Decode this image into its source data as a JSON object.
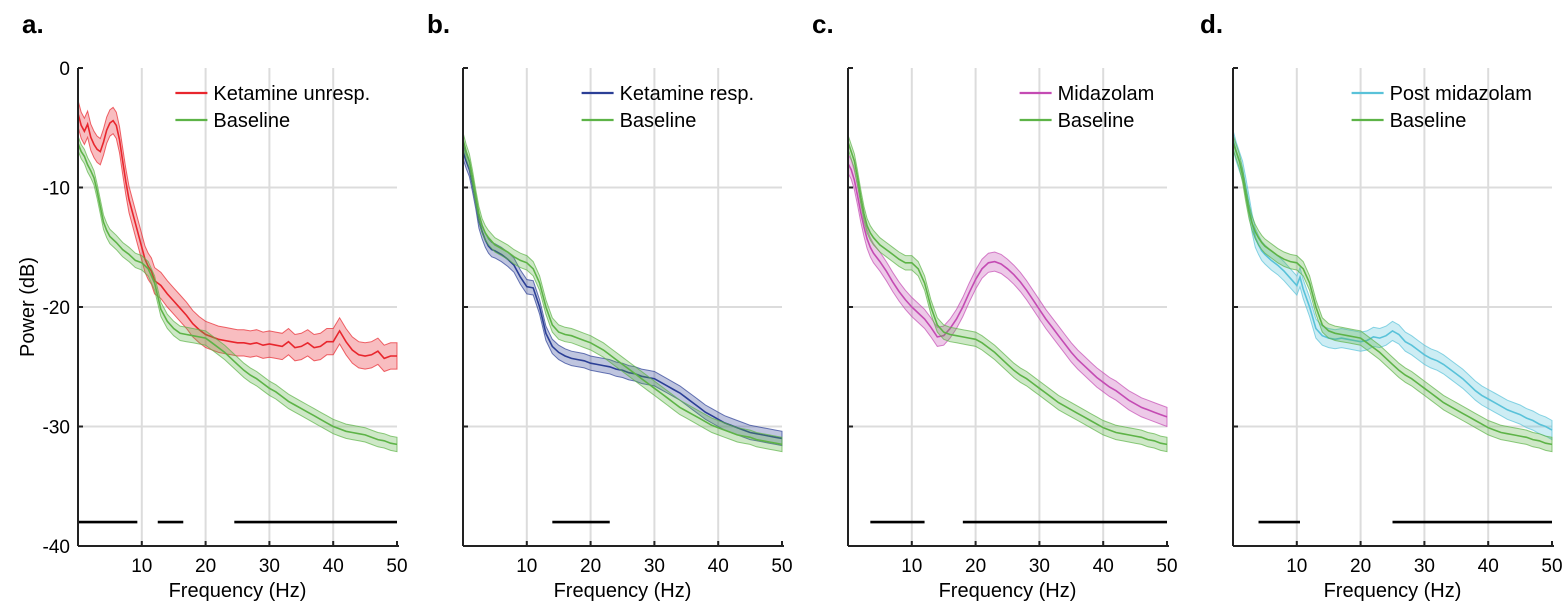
{
  "colors": {
    "baseline": "#5db347",
    "ketamine_unresp": "#e8262d",
    "ketamine_resp": "#2b3f96",
    "midazolam": "#c44bb3",
    "post_midazolam": "#59c2d9",
    "significance": "#000000"
  },
  "chart_data": [
    {
      "type": "line",
      "panel": "a.",
      "xlabel": "Frequency (Hz)",
      "ylabel": "Power (dB)",
      "xlim": [
        0,
        50
      ],
      "ylim": [
        -40,
        0
      ],
      "xticks": [
        10,
        20,
        30,
        40,
        50
      ],
      "yticks": [
        0,
        -10,
        -20,
        -30,
        -40
      ],
      "grid": true,
      "legend": "top-right",
      "series": [
        {
          "name": "Ketamine unresp.",
          "color_key": "ketamine_unresp",
          "band": 1.1,
          "x": [
            0,
            0.5,
            1,
            1.5,
            2,
            2.5,
            3,
            3.5,
            4,
            4.5,
            5,
            5.5,
            6,
            6.5,
            7,
            7.5,
            8,
            8.5,
            9,
            9.5,
            10,
            10.5,
            11,
            11.5,
            12,
            13,
            14,
            15,
            16,
            17,
            18,
            19,
            20,
            21,
            22,
            23,
            24,
            25,
            26,
            27,
            28,
            29,
            30,
            31,
            32,
            33,
            34,
            35,
            36,
            37,
            38,
            39,
            40,
            41,
            42,
            43,
            44,
            45,
            46,
            47,
            48,
            49,
            50
          ],
          "y": [
            -3.8,
            -4.8,
            -5.3,
            -4.7,
            -5.8,
            -6.4,
            -6.8,
            -7.0,
            -6.2,
            -5.2,
            -4.6,
            -4.4,
            -4.8,
            -6.0,
            -7.8,
            -9.5,
            -11.0,
            -12.0,
            -13.0,
            -14.0,
            -15.0,
            -16.0,
            -16.6,
            -17.0,
            -17.8,
            -18.2,
            -18.9,
            -19.5,
            -20.1,
            -20.7,
            -21.4,
            -21.9,
            -22.3,
            -22.5,
            -22.7,
            -22.8,
            -22.9,
            -23.0,
            -23.0,
            -23.1,
            -23.0,
            -23.2,
            -23.1,
            -23.2,
            -23.3,
            -22.9,
            -23.4,
            -23.3,
            -23.0,
            -23.4,
            -23.3,
            -22.9,
            -22.9,
            -22.0,
            -22.9,
            -23.6,
            -24.0,
            -24.1,
            -24.0,
            -23.7,
            -24.3,
            -24.1,
            -24.1
          ]
        },
        {
          "name": "Baseline",
          "color_key": "baseline",
          "band": 0.6,
          "x": [
            0,
            0.5,
            1,
            1.5,
            2,
            2.5,
            3,
            3.5,
            4,
            4.5,
            5,
            6,
            7,
            8,
            9,
            10,
            11,
            12,
            13,
            14,
            15,
            16,
            17,
            18,
            19,
            20,
            21,
            22,
            23,
            24,
            25,
            26,
            27,
            28,
            29,
            30,
            31,
            32,
            33,
            34,
            35,
            36,
            37,
            38,
            39,
            40,
            41,
            42,
            43,
            44,
            45,
            46,
            47,
            48,
            49,
            50
          ],
          "y": [
            -6.3,
            -7.0,
            -7.4,
            -8.1,
            -8.6,
            -9.2,
            -10.3,
            -11.6,
            -12.9,
            -13.6,
            -14.1,
            -14.6,
            -15.2,
            -15.6,
            -16.1,
            -16.3,
            -16.8,
            -18.0,
            -20.2,
            -21.2,
            -21.8,
            -22.2,
            -22.3,
            -22.4,
            -22.5,
            -22.6,
            -23.0,
            -23.4,
            -23.8,
            -24.3,
            -24.8,
            -25.3,
            -25.7,
            -26.0,
            -26.4,
            -26.8,
            -27.1,
            -27.5,
            -27.9,
            -28.2,
            -28.5,
            -28.8,
            -29.1,
            -29.4,
            -29.7,
            -30.0,
            -30.2,
            -30.4,
            -30.5,
            -30.6,
            -30.7,
            -30.9,
            -31.1,
            -31.2,
            -31.4,
            -31.5
          ]
        }
      ],
      "significance_bars": [
        [
          0,
          9.3
        ],
        [
          12.5,
          16.5
        ],
        [
          24.5,
          50
        ]
      ],
      "significance_y": -38.0
    },
    {
      "type": "line",
      "panel": "b.",
      "xlabel": "Frequency (Hz)",
      "ylabel": "",
      "xlim": [
        0,
        50
      ],
      "ylim": [
        -40,
        0
      ],
      "xticks": [
        10,
        20,
        30,
        40,
        50
      ],
      "yticks": [],
      "grid": true,
      "legend": "top-right",
      "series": [
        {
          "name": "Ketamine resp.",
          "color_key": "ketamine_resp",
          "band": 0.6,
          "x": [
            0,
            0.5,
            1,
            1.5,
            2,
            2.5,
            3,
            3.5,
            4,
            4.5,
            5,
            6,
            7,
            8,
            9,
            10,
            11,
            12,
            13,
            14,
            15,
            16,
            17,
            18,
            19,
            20,
            21,
            22,
            23,
            24,
            25,
            26,
            27,
            28,
            29,
            30,
            31,
            32,
            33,
            34,
            35,
            36,
            37,
            38,
            39,
            40,
            41,
            42,
            43,
            44,
            45,
            46,
            47,
            48,
            49,
            50
          ],
          "y": [
            -7.0,
            -7.8,
            -8.5,
            -9.8,
            -11.2,
            -12.8,
            -13.7,
            -14.4,
            -14.9,
            -15.2,
            -15.3,
            -15.6,
            -16.0,
            -16.5,
            -17.5,
            -18.3,
            -18.4,
            -20.0,
            -22.2,
            -23.3,
            -23.8,
            -24.1,
            -24.3,
            -24.4,
            -24.5,
            -24.7,
            -24.8,
            -24.9,
            -25.0,
            -25.2,
            -25.3,
            -25.5,
            -25.6,
            -25.8,
            -25.9,
            -26.0,
            -26.3,
            -26.6,
            -26.9,
            -27.2,
            -27.6,
            -28.0,
            -28.4,
            -28.8,
            -29.1,
            -29.4,
            -29.7,
            -29.9,
            -30.1,
            -30.3,
            -30.5,
            -30.6,
            -30.7,
            -30.8,
            -30.9,
            -31.0
          ]
        },
        {
          "name": "Baseline",
          "color_key": "baseline",
          "band": 0.6,
          "x": [
            0,
            0.5,
            1,
            1.5,
            2,
            2.5,
            3,
            3.5,
            4,
            4.5,
            5,
            6,
            7,
            8,
            9,
            10,
            11,
            12,
            13,
            14,
            15,
            16,
            17,
            18,
            19,
            20,
            21,
            22,
            23,
            24,
            25,
            26,
            27,
            28,
            29,
            30,
            31,
            32,
            33,
            34,
            35,
            36,
            37,
            38,
            39,
            40,
            41,
            42,
            43,
            44,
            45,
            46,
            47,
            48,
            49,
            50
          ],
          "y": [
            -6.0,
            -7.0,
            -7.8,
            -9.2,
            -10.8,
            -12.2,
            -13.2,
            -13.8,
            -14.2,
            -14.5,
            -14.8,
            -15.1,
            -15.4,
            -15.8,
            -16.1,
            -16.3,
            -16.8,
            -18.0,
            -20.0,
            -21.5,
            -22.1,
            -22.3,
            -22.4,
            -22.6,
            -22.8,
            -23.0,
            -23.3,
            -23.6,
            -24.0,
            -24.4,
            -24.8,
            -25.2,
            -25.6,
            -26.0,
            -26.4,
            -26.8,
            -27.2,
            -27.6,
            -28.0,
            -28.4,
            -28.7,
            -29.0,
            -29.3,
            -29.6,
            -29.9,
            -30.1,
            -30.3,
            -30.5,
            -30.7,
            -30.8,
            -30.9,
            -31.1,
            -31.2,
            -31.3,
            -31.4,
            -31.5
          ]
        }
      ],
      "significance_bars": [
        [
          14,
          23
        ]
      ],
      "significance_y": -38.0
    },
    {
      "type": "line",
      "panel": "c.",
      "xlabel": "Frequency (Hz)",
      "ylabel": "",
      "xlim": [
        0,
        50
      ],
      "ylim": [
        -40,
        0
      ],
      "xticks": [
        10,
        20,
        30,
        40,
        50
      ],
      "yticks": [],
      "grid": true,
      "legend": "top-right",
      "series": [
        {
          "name": "Midazolam",
          "color_key": "midazolam",
          "band": 0.8,
          "x": [
            0,
            0.5,
            1,
            1.5,
            2,
            2.5,
            3,
            3.5,
            4,
            5,
            6,
            7,
            8,
            9,
            10,
            11,
            12,
            13,
            14,
            15,
            16,
            17,
            18,
            19,
            20,
            21,
            22,
            23,
            24,
            25,
            26,
            27,
            28,
            29,
            30,
            31,
            32,
            33,
            34,
            35,
            36,
            37,
            38,
            39,
            40,
            41,
            42,
            43,
            44,
            45,
            46,
            47,
            48,
            49,
            50
          ],
          "y": [
            -8.0,
            -8.5,
            -9.4,
            -10.7,
            -12.1,
            -13.3,
            -14.3,
            -15.0,
            -15.5,
            -16.2,
            -17.0,
            -17.9,
            -18.7,
            -19.4,
            -20.0,
            -20.5,
            -21.0,
            -21.7,
            -22.5,
            -22.4,
            -21.8,
            -21.0,
            -20.0,
            -18.8,
            -17.7,
            -16.8,
            -16.3,
            -16.2,
            -16.4,
            -16.8,
            -17.3,
            -17.9,
            -18.6,
            -19.4,
            -20.2,
            -21.0,
            -21.7,
            -22.4,
            -23.1,
            -23.8,
            -24.4,
            -24.9,
            -25.4,
            -25.9,
            -26.3,
            -26.7,
            -27.0,
            -27.4,
            -27.8,
            -28.1,
            -28.4,
            -28.6,
            -28.8,
            -29.0,
            -29.2
          ]
        },
        {
          "name": "Baseline",
          "color_key": "baseline",
          "band": 0.6,
          "x": [
            0,
            0.5,
            1,
            1.5,
            2,
            2.5,
            3,
            3.5,
            4,
            4.5,
            5,
            6,
            7,
            8,
            9,
            10,
            11,
            12,
            13,
            14,
            15,
            16,
            17,
            18,
            19,
            20,
            21,
            22,
            23,
            24,
            25,
            26,
            27,
            28,
            29,
            30,
            31,
            32,
            33,
            34,
            35,
            36,
            37,
            38,
            39,
            40,
            41,
            42,
            43,
            44,
            45,
            46,
            47,
            48,
            49,
            50
          ],
          "y": [
            -6.2,
            -7.0,
            -7.8,
            -9.2,
            -10.8,
            -12.2,
            -13.2,
            -13.8,
            -14.2,
            -14.5,
            -14.8,
            -15.2,
            -15.6,
            -16.0,
            -16.3,
            -16.3,
            -16.8,
            -18.0,
            -20.0,
            -21.5,
            -22.1,
            -22.3,
            -22.4,
            -22.5,
            -22.6,
            -22.7,
            -23.0,
            -23.4,
            -23.8,
            -24.3,
            -24.8,
            -25.3,
            -25.7,
            -26.0,
            -26.4,
            -26.8,
            -27.2,
            -27.6,
            -28.0,
            -28.3,
            -28.6,
            -28.9,
            -29.2,
            -29.5,
            -29.8,
            -30.1,
            -30.3,
            -30.5,
            -30.6,
            -30.7,
            -30.8,
            -30.9,
            -31.1,
            -31.2,
            -31.4,
            -31.5
          ]
        }
      ],
      "significance_bars": [
        [
          3.5,
          12
        ],
        [
          18,
          50
        ]
      ],
      "significance_y": -38.0
    },
    {
      "type": "line",
      "panel": "d.",
      "xlabel": "Frequency (Hz)",
      "ylabel": "",
      "xlim": [
        0,
        50
      ],
      "ylim": [
        -40,
        0
      ],
      "xticks": [
        10,
        20,
        30,
        40,
        50
      ],
      "yticks": [],
      "grid": true,
      "legend": "top-right",
      "series": [
        {
          "name": "Post midazolam",
          "color_key": "post_midazolam",
          "band": 0.8,
          "x": [
            0,
            0.5,
            1,
            1.5,
            2,
            2.5,
            3,
            3.5,
            4,
            4.5,
            5,
            6,
            7,
            8,
            9,
            10,
            10.5,
            11,
            12,
            13,
            14,
            15,
            16,
            17,
            18,
            19,
            20,
            21,
            22,
            23,
            24,
            25,
            26,
            27,
            28,
            29,
            30,
            31,
            32,
            33,
            34,
            35,
            36,
            37,
            38,
            39,
            40,
            41,
            42,
            43,
            44,
            45,
            46,
            47,
            48,
            49,
            50
          ],
          "y": [
            -6.0,
            -7.0,
            -7.8,
            -8.6,
            -10.0,
            -11.5,
            -13.0,
            -14.2,
            -14.8,
            -15.3,
            -15.6,
            -16.1,
            -16.5,
            -17.0,
            -17.6,
            -18.2,
            -17.5,
            -18.5,
            -20.0,
            -21.8,
            -22.4,
            -22.6,
            -22.7,
            -22.6,
            -22.7,
            -22.8,
            -22.9,
            -22.8,
            -22.5,
            -22.6,
            -22.4,
            -22.0,
            -22.3,
            -22.9,
            -23.2,
            -23.6,
            -24.0,
            -24.3,
            -24.5,
            -24.8,
            -25.2,
            -25.6,
            -26.0,
            -26.5,
            -27.0,
            -27.4,
            -27.7,
            -28.0,
            -28.3,
            -28.6,
            -28.8,
            -29.0,
            -29.3,
            -29.5,
            -29.8,
            -30.0,
            -30.3
          ]
        },
        {
          "name": "Baseline",
          "color_key": "baseline",
          "band": 0.6,
          "x": [
            0,
            0.5,
            1,
            1.5,
            2,
            2.5,
            3,
            3.5,
            4,
            4.5,
            5,
            6,
            7,
            8,
            9,
            10,
            11,
            12,
            13,
            14,
            15,
            16,
            17,
            18,
            19,
            20,
            21,
            22,
            23,
            24,
            25,
            26,
            27,
            28,
            29,
            30,
            31,
            32,
            33,
            34,
            35,
            36,
            37,
            38,
            39,
            40,
            41,
            42,
            43,
            44,
            45,
            46,
            47,
            48,
            49,
            50
          ],
          "y": [
            -6.2,
            -7.0,
            -7.8,
            -9.0,
            -10.6,
            -12.0,
            -13.0,
            -13.7,
            -14.2,
            -14.6,
            -14.9,
            -15.3,
            -15.7,
            -16.0,
            -16.2,
            -16.3,
            -16.8,
            -18.0,
            -20.0,
            -21.5,
            -22.0,
            -22.2,
            -22.3,
            -22.4,
            -22.5,
            -22.6,
            -23.0,
            -23.4,
            -23.8,
            -24.3,
            -24.8,
            -25.3,
            -25.7,
            -26.0,
            -26.4,
            -26.8,
            -27.2,
            -27.6,
            -28.0,
            -28.3,
            -28.6,
            -28.9,
            -29.2,
            -29.5,
            -29.8,
            -30.1,
            -30.3,
            -30.5,
            -30.6,
            -30.7,
            -30.8,
            -30.9,
            -31.1,
            -31.2,
            -31.4,
            -31.5
          ]
        }
      ],
      "significance_bars": [
        [
          4,
          10.5
        ],
        [
          25,
          50
        ]
      ],
      "significance_y": -38.0
    }
  ]
}
